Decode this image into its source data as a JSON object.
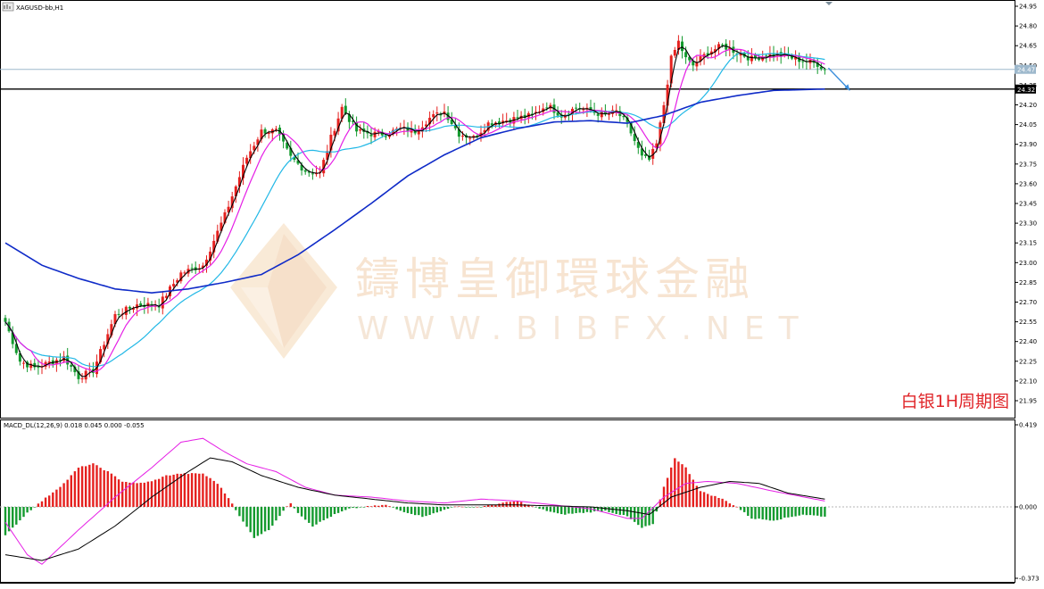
{
  "symbol_header": "XAGUSD-bb,H1",
  "macd_header": "MACD_DL(12,26,9) 0.018 0.045 0.000 -0.055",
  "watermark": {
    "cn": "鑄博皇御環球金融",
    "en": "WWW.BIBFX.NET"
  },
  "caption": "白银1H周期图",
  "chart_data": [
    {
      "type": "candlestick",
      "ylim": [
        21.85,
        25.0
      ],
      "y_ticks": [
        "24.95",
        "24.80",
        "24.65",
        "24.50",
        "24.35",
        "24.20",
        "24.05",
        "23.90",
        "23.75",
        "23.60",
        "23.45",
        "23.30",
        "23.15",
        "23.00",
        "22.85",
        "22.70",
        "22.55",
        "22.40",
        "22.25",
        "22.10",
        "21.95"
      ],
      "price_markers": {
        "current": "24.47",
        "level": "24.32"
      },
      "colors": {
        "up": "#e5211f",
        "down": "#139a2e",
        "ma_fast": "#000000",
        "ma_mid": "#e51ee5",
        "ma_slow": "#22b8e6",
        "ma_long": "#0f2bc8",
        "arrow": "#3d8fdc"
      },
      "close_anchors": [
        [
          0,
          22.55
        ],
        [
          4,
          22.25
        ],
        [
          8,
          22.2
        ],
        [
          12,
          22.24
        ],
        [
          16,
          22.28
        ],
        [
          20,
          22.13
        ],
        [
          24,
          22.18
        ],
        [
          30,
          22.6
        ],
        [
          36,
          22.68
        ],
        [
          42,
          22.68
        ],
        [
          48,
          22.92
        ],
        [
          54,
          22.98
        ],
        [
          60,
          23.36
        ],
        [
          66,
          23.8
        ],
        [
          70,
          24.0
        ],
        [
          74,
          24.0
        ],
        [
          78,
          23.8
        ],
        [
          82,
          23.7
        ],
        [
          86,
          23.68
        ],
        [
          89,
          23.95
        ],
        [
          92,
          24.18
        ],
        [
          96,
          24.0
        ],
        [
          100,
          23.98
        ],
        [
          104,
          23.98
        ],
        [
          108,
          24.02
        ],
        [
          112,
          24.0
        ],
        [
          116,
          24.1
        ],
        [
          120,
          24.15
        ],
        [
          124,
          23.98
        ],
        [
          128,
          23.95
        ],
        [
          132,
          24.06
        ],
        [
          136,
          24.08
        ],
        [
          140,
          24.1
        ],
        [
          144,
          24.12
        ],
        [
          148,
          24.2
        ],
        [
          152,
          24.12
        ],
        [
          156,
          24.18
        ],
        [
          160,
          24.15
        ],
        [
          164,
          24.12
        ],
        [
          167,
          24.15
        ],
        [
          170,
          24.05
        ],
        [
          174,
          23.8
        ],
        [
          176,
          23.78
        ],
        [
          178,
          23.9
        ],
        [
          180,
          24.2
        ],
        [
          182,
          24.55
        ],
        [
          184,
          24.68
        ],
        [
          186,
          24.55
        ],
        [
          188,
          24.5
        ],
        [
          192,
          24.6
        ],
        [
          196,
          24.65
        ],
        [
          200,
          24.6
        ],
        [
          204,
          24.55
        ],
        [
          208,
          24.58
        ],
        [
          212,
          24.58
        ],
        [
          216,
          24.55
        ],
        [
          219,
          24.53
        ],
        [
          222,
          24.51
        ],
        [
          224,
          24.47
        ]
      ],
      "ma_long_anchors": [
        [
          0,
          23.15
        ],
        [
          10,
          22.98
        ],
        [
          20,
          22.88
        ],
        [
          30,
          22.8
        ],
        [
          40,
          22.77
        ],
        [
          50,
          22.8
        ],
        [
          60,
          22.85
        ],
        [
          70,
          22.91
        ],
        [
          80,
          23.06
        ],
        [
          90,
          23.25
        ],
        [
          100,
          23.45
        ],
        [
          110,
          23.66
        ],
        [
          120,
          23.82
        ],
        [
          130,
          23.95
        ],
        [
          140,
          24.02
        ],
        [
          150,
          24.07
        ],
        [
          160,
          24.08
        ],
        [
          170,
          24.06
        ],
        [
          180,
          24.12
        ],
        [
          190,
          24.22
        ],
        [
          200,
          24.27
        ],
        [
          210,
          24.31
        ],
        [
          224,
          24.32
        ]
      ],
      "forecast_arrow": {
        "from": 24.48,
        "to": 24.31
      }
    },
    {
      "type": "macd",
      "title": "MACD_DL(12,26,9) 0.018 0.045 0.000 -0.055",
      "ylim": [
        -0.373,
        0.419
      ],
      "y_ticks": [
        "0.419",
        "0.000",
        "-0.373"
      ],
      "hist_anchors": [
        [
          0,
          -0.15
        ],
        [
          6,
          -0.03
        ],
        [
          10,
          0.03
        ],
        [
          16,
          0.12
        ],
        [
          20,
          0.2
        ],
        [
          24,
          0.22
        ],
        [
          28,
          0.18
        ],
        [
          32,
          0.13
        ],
        [
          36,
          0.12
        ],
        [
          40,
          0.13
        ],
        [
          44,
          0.16
        ],
        [
          48,
          0.17
        ],
        [
          54,
          0.17
        ],
        [
          58,
          0.12
        ],
        [
          62,
          0.02
        ],
        [
          64,
          -0.05
        ],
        [
          68,
          -0.16
        ],
        [
          72,
          -0.12
        ],
        [
          76,
          -0.02
        ],
        [
          78,
          0.02
        ],
        [
          80,
          -0.03
        ],
        [
          84,
          -0.1
        ],
        [
          86,
          -0.08
        ],
        [
          90,
          -0.04
        ],
        [
          94,
          -0.01
        ],
        [
          98,
          0.0
        ],
        [
          104,
          0.01
        ],
        [
          108,
          -0.02
        ],
        [
          114,
          -0.05
        ],
        [
          118,
          -0.03
        ],
        [
          122,
          0.0
        ],
        [
          130,
          0.0
        ],
        [
          136,
          0.02
        ],
        [
          140,
          0.03
        ],
        [
          146,
          -0.01
        ],
        [
          152,
          -0.04
        ],
        [
          158,
          -0.03
        ],
        [
          164,
          -0.02
        ],
        [
          170,
          -0.05
        ],
        [
          174,
          -0.11
        ],
        [
          177,
          -0.09
        ],
        [
          180,
          0.1
        ],
        [
          183,
          0.25
        ],
        [
          186,
          0.2
        ],
        [
          190,
          0.08
        ],
        [
          196,
          0.04
        ],
        [
          200,
          0.0
        ],
        [
          204,
          -0.06
        ],
        [
          210,
          -0.07
        ],
        [
          218,
          -0.04
        ],
        [
          224,
          -0.05
        ]
      ],
      "macd_anchors": [
        [
          0,
          -0.25
        ],
        [
          10,
          -0.28
        ],
        [
          20,
          -0.22
        ],
        [
          30,
          -0.1
        ],
        [
          40,
          0.05
        ],
        [
          50,
          0.18
        ],
        [
          56,
          0.25
        ],
        [
          62,
          0.23
        ],
        [
          70,
          0.16
        ],
        [
          80,
          0.1
        ],
        [
          90,
          0.06
        ],
        [
          100,
          0.04
        ],
        [
          110,
          0.02
        ],
        [
          120,
          0.01
        ],
        [
          140,
          0.01
        ],
        [
          160,
          0.0
        ],
        [
          170,
          -0.02
        ],
        [
          176,
          -0.04
        ],
        [
          182,
          0.05
        ],
        [
          190,
          0.1
        ],
        [
          198,
          0.13
        ],
        [
          206,
          0.12
        ],
        [
          214,
          0.07
        ],
        [
          224,
          0.04
        ]
      ],
      "signal_anchors": [
        [
          0,
          -0.08
        ],
        [
          6,
          -0.25
        ],
        [
          10,
          -0.3
        ],
        [
          20,
          -0.12
        ],
        [
          30,
          0.05
        ],
        [
          40,
          0.2
        ],
        [
          48,
          0.33
        ],
        [
          54,
          0.35
        ],
        [
          60,
          0.28
        ],
        [
          66,
          0.22
        ],
        [
          74,
          0.18
        ],
        [
          82,
          0.1
        ],
        [
          90,
          0.06
        ],
        [
          100,
          0.05
        ],
        [
          110,
          0.03
        ],
        [
          120,
          0.02
        ],
        [
          130,
          0.04
        ],
        [
          140,
          0.03
        ],
        [
          150,
          0.01
        ],
        [
          160,
          -0.01
        ],
        [
          170,
          -0.06
        ],
        [
          174,
          -0.06
        ],
        [
          180,
          0.05
        ],
        [
          186,
          0.12
        ],
        [
          192,
          0.13
        ],
        [
          200,
          0.12
        ],
        [
          210,
          0.08
        ],
        [
          224,
          0.03
        ]
      ]
    }
  ]
}
